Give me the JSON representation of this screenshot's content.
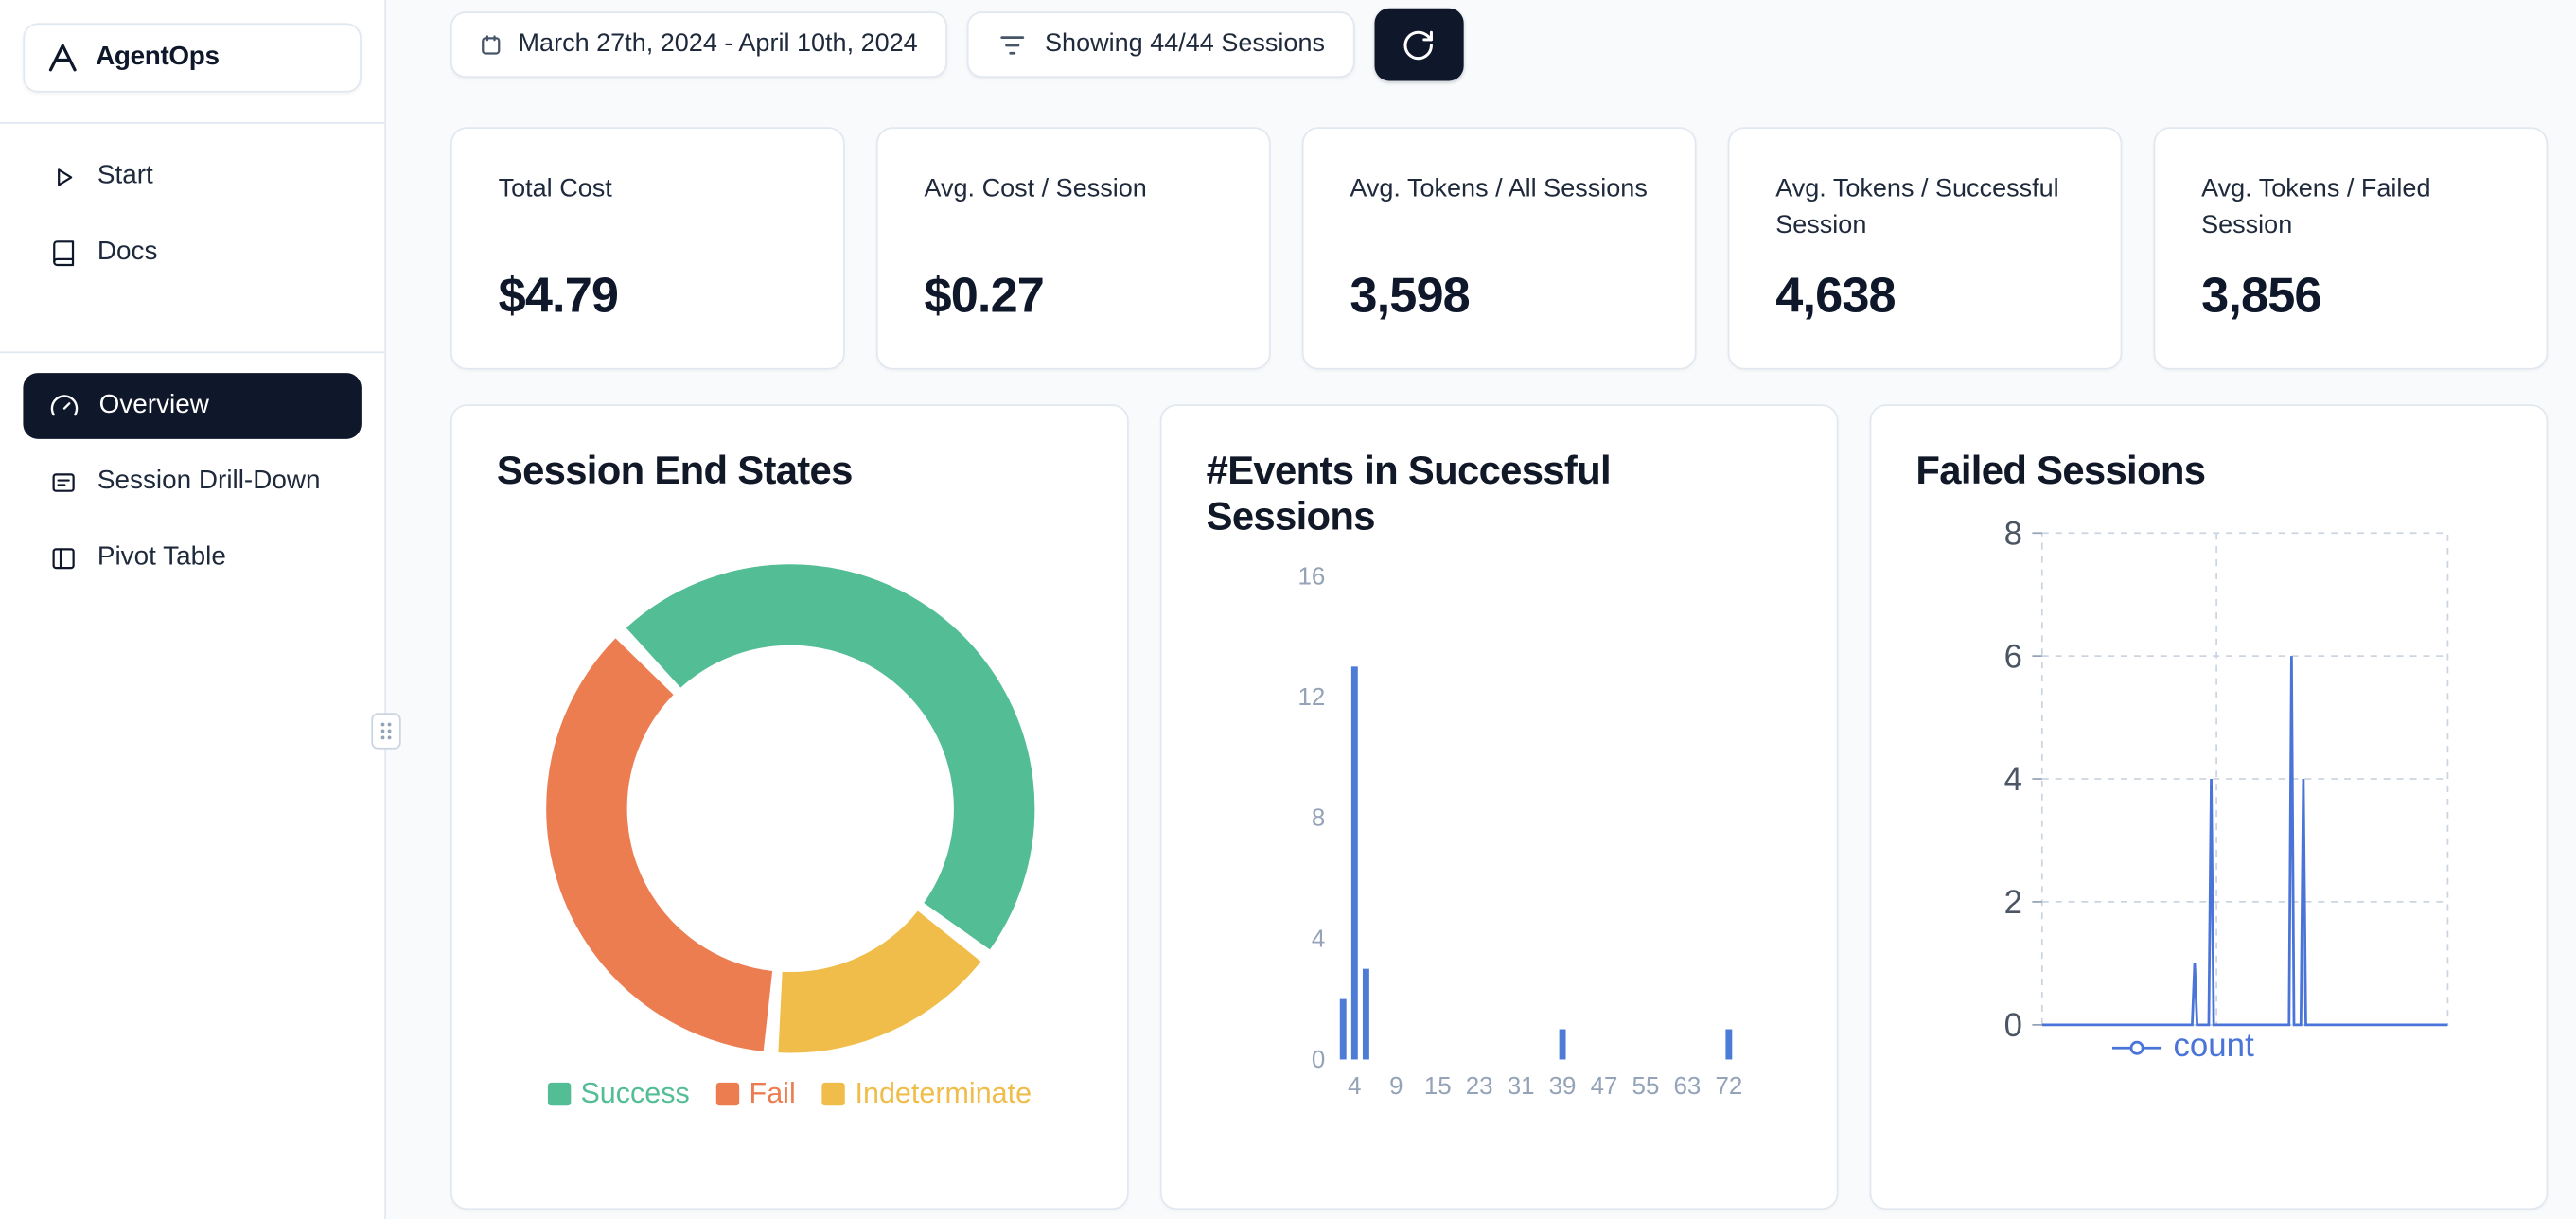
{
  "app": {
    "name": "AgentOps",
    "logo_icon": "agentops-logo-icon"
  },
  "sidebar": {
    "items": [
      {
        "label": "Start",
        "icon": "play-icon",
        "active": false
      },
      {
        "label": "Docs",
        "icon": "docs-icon",
        "active": false
      },
      {
        "label": "Overview",
        "icon": "gauge-icon",
        "active": true
      },
      {
        "label": "Session Drill-Down",
        "icon": "session-drilldown-icon",
        "active": false
      },
      {
        "label": "Pivot Table",
        "icon": "pivot-table-icon",
        "active": false
      }
    ],
    "resize_handle_icon": "drag-handle-icon"
  },
  "toolbar": {
    "date_range": "March 27th, 2024 - April 10th, 2024",
    "date_icon": "calendar-icon",
    "sessions_filter": "Showing 44/44 Sessions",
    "filter_icon": "filter-icon",
    "refresh_icon": "refresh-icon"
  },
  "stats": [
    {
      "label": "Total Cost",
      "value": "$4.79"
    },
    {
      "label": "Avg. Cost / Session",
      "value": "$0.27"
    },
    {
      "label": "Avg. Tokens / All Sessions",
      "value": "3,598"
    },
    {
      "label": "Avg. Tokens / Successful Session",
      "value": "4,638"
    },
    {
      "label": "Avg. Tokens / Failed Session",
      "value": "3,856"
    }
  ],
  "colors": {
    "accent_dark": "#0f172a",
    "card_border": "#e2e8f0",
    "page_bg": "#f8fafc",
    "axis_gray": "#94a3b8"
  },
  "chart_data": [
    {
      "type": "pie",
      "title": "Session End States",
      "labels": [
        "Success",
        "Fail",
        "Indeterminate"
      ],
      "values_pct": [
        47.5,
        36.5,
        16.0
      ],
      "colors": [
        "#53bd95",
        "#ec7d51",
        "#f0bd4b"
      ],
      "donut": true,
      "start_angle_deg": -44,
      "clockwise_draw_order": [
        0,
        2,
        1
      ],
      "pad_angle_deg": 3.5,
      "legend_position": "bottom"
    },
    {
      "type": "bar",
      "title": "#Events in Successful Sessions",
      "xlabel": "",
      "ylabel": "",
      "x_tick_labels": [
        "4",
        "9",
        "15",
        "23",
        "31",
        "39",
        "47",
        "55",
        "63",
        "72"
      ],
      "y_ticks": [
        0,
        4,
        8,
        12,
        16
      ],
      "ylim": [
        0,
        16
      ],
      "bar_color": "#4d7cd6",
      "grid": "off",
      "bars": [
        {
          "x_tick": "4",
          "offset": -1,
          "value": 2
        },
        {
          "x_tick": "4",
          "offset": 0,
          "value": 13
        },
        {
          "x_tick": "4",
          "offset": 1,
          "value": 3
        },
        {
          "x_tick": "39",
          "offset": 0,
          "value": 1
        },
        {
          "x_tick": "72",
          "offset": 0,
          "value": 1
        }
      ]
    },
    {
      "type": "line",
      "title": "Failed Sessions",
      "series": [
        {
          "name": "count",
          "color": "#4a74d8"
        }
      ],
      "y_ticks": [
        0,
        2,
        4,
        6,
        8
      ],
      "ylim": [
        0,
        8
      ],
      "grid": "dashed",
      "v_gridlines": [
        0.43
      ],
      "legend_position": "bottom",
      "points": [
        {
          "x": 0.0,
          "y": 0
        },
        {
          "x": 0.37,
          "y": 0
        },
        {
          "x": 0.376,
          "y": 1
        },
        {
          "x": 0.382,
          "y": 0
        },
        {
          "x": 0.411,
          "y": 0
        },
        {
          "x": 0.417,
          "y": 4
        },
        {
          "x": 0.423,
          "y": 0
        },
        {
          "x": 0.609,
          "y": 0
        },
        {
          "x": 0.615,
          "y": 6
        },
        {
          "x": 0.621,
          "y": 0
        },
        {
          "x": 0.638,
          "y": 0
        },
        {
          "x": 0.644,
          "y": 4
        },
        {
          "x": 0.65,
          "y": 0
        },
        {
          "x": 1.0,
          "y": 0
        }
      ]
    }
  ]
}
